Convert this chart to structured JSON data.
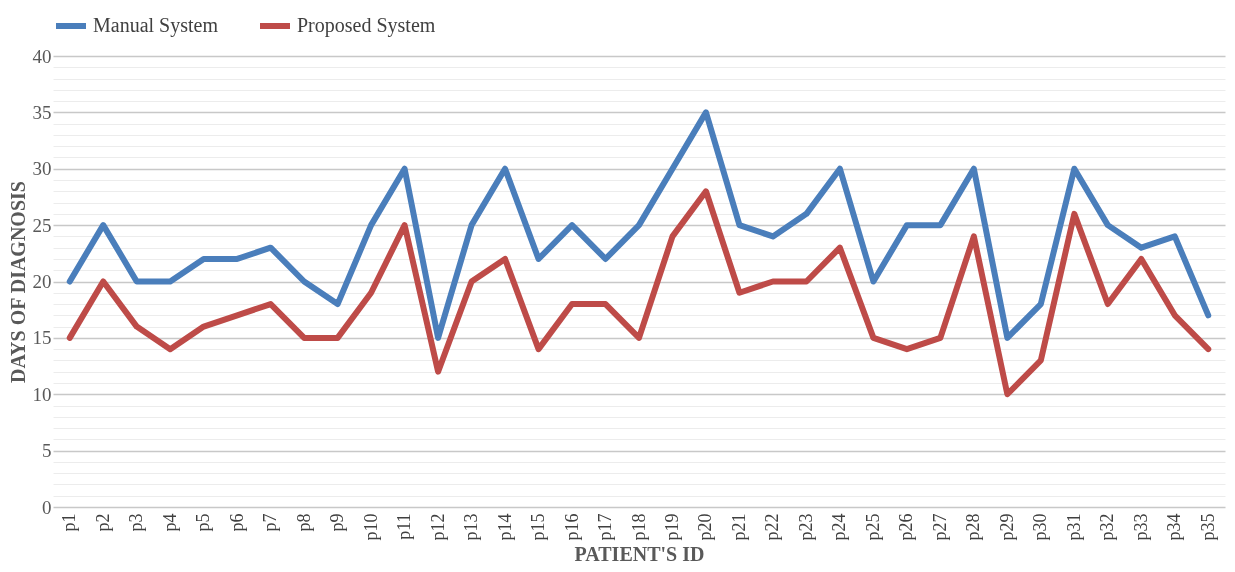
{
  "chart_data": {
    "type": "line",
    "xlabel": "PATIENT'S ID",
    "ylabel": "DAYS OF DIAGNOSIS",
    "categories": [
      "p1",
      "p2",
      "p3",
      "p4",
      "p5",
      "p6",
      "p7",
      "p8",
      "p9",
      "p10",
      "p11",
      "p12",
      "p13",
      "p14",
      "p15",
      "p16",
      "p17",
      "p18",
      "p19",
      "p20",
      "p21",
      "p22",
      "p23",
      "p24",
      "p25",
      "p26",
      "p27",
      "p28",
      "p29",
      "p30",
      "p31",
      "p32",
      "p33",
      "p34",
      "p35"
    ],
    "series": [
      {
        "name": "Manual System",
        "color": "#4a7ebb",
        "values": [
          20,
          25,
          20,
          20,
          22,
          22,
          23,
          20,
          18,
          25,
          30,
          15,
          25,
          30,
          22,
          25,
          22,
          25,
          30,
          35,
          25,
          24,
          26,
          30,
          20,
          25,
          25,
          30,
          15,
          18,
          30,
          25,
          23,
          24,
          17
        ]
      },
      {
        "name": "Proposed System",
        "color": "#be4b48",
        "values": [
          15,
          20,
          16,
          14,
          16,
          17,
          18,
          15,
          15,
          19,
          25,
          12,
          20,
          22,
          14,
          18,
          18,
          15,
          24,
          28,
          19,
          20,
          20,
          23,
          15,
          14,
          15,
          24,
          10,
          13,
          26,
          18,
          22,
          17,
          14
        ]
      }
    ],
    "ylim": [
      0,
      40
    ],
    "yticks": [
      0,
      {
        "value": 1,
        "label": null
      },
      {
        "value": 2,
        "label": null
      },
      {
        "value": 3,
        "label": null
      },
      {
        "value": 4,
        "label": null
      },
      5,
      {
        "value": 6,
        "label": null
      },
      {
        "value": 7,
        "label": null
      },
      {
        "value": 8,
        "label": null
      },
      {
        "value": 9,
        "label": null
      },
      10,
      {
        "value": 11,
        "label": null
      },
      {
        "value": 12,
        "label": null
      },
      {
        "value": 13,
        "label": null
      },
      {
        "value": 14,
        "label": null
      },
      15,
      {
        "value": 16,
        "label": null
      },
      {
        "value": 17,
        "label": null
      },
      {
        "value": 18,
        "label": null
      },
      {
        "value": 19,
        "label": null
      },
      20,
      {
        "value": 21,
        "label": null
      },
      {
        "value": 22,
        "label": null
      },
      {
        "value": 23,
        "label": null
      },
      {
        "value": 24,
        "label": null
      },
      25,
      {
        "value": 26,
        "label": null
      },
      {
        "value": 27,
        "label": null
      },
      {
        "value": 28,
        "label": null
      },
      {
        "value": 29,
        "label": null
      },
      30,
      {
        "value": 31,
        "label": null
      },
      {
        "value": 32,
        "label": null
      },
      {
        "value": 33,
        "label": null
      },
      {
        "value": 34,
        "label": null
      },
      35,
      {
        "value": 36,
        "label": null
      },
      {
        "value": 37,
        "label": null
      },
      {
        "value": 38,
        "label": null
      },
      {
        "value": 39,
        "label": null
      },
      40
    ],
    "grid": "y",
    "legend": "top",
    "marker": "none",
    "line_style": "solid"
  }
}
